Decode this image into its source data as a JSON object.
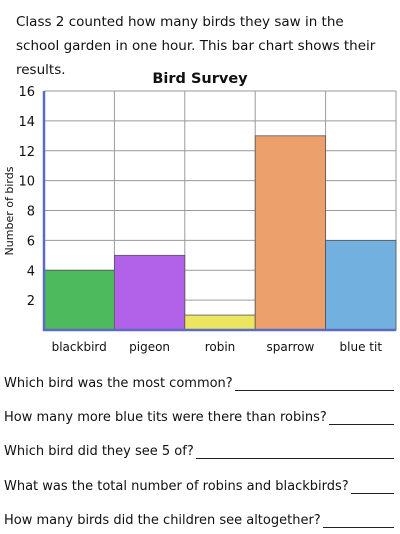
{
  "intro": "Class 2 counted how many birds they saw in the school garden in one hour. This bar chart shows their results.",
  "chart_data": {
    "type": "bar",
    "title": "Bird Survey",
    "xlabel": "",
    "ylabel": "Number of birds",
    "categories": [
      "blackbird",
      "pigeon",
      "robin",
      "sparrow",
      "blue tit"
    ],
    "values": [
      4,
      5,
      1,
      13,
      6
    ],
    "colors": [
      "#4cba5d",
      "#b262e8",
      "#ebe55f",
      "#eca06c",
      "#72b0e0"
    ],
    "ylim": [
      0,
      16
    ],
    "yticks": [
      2,
      4,
      6,
      8,
      10,
      12,
      14,
      16
    ],
    "grid": true
  },
  "questions": [
    "Which bird was the most common?",
    "How many more blue tits were there than robins?",
    "Which bird did they see 5 of?",
    "What was the total number of robins and blackbirds?",
    "How many birds did the children see altogether?"
  ]
}
